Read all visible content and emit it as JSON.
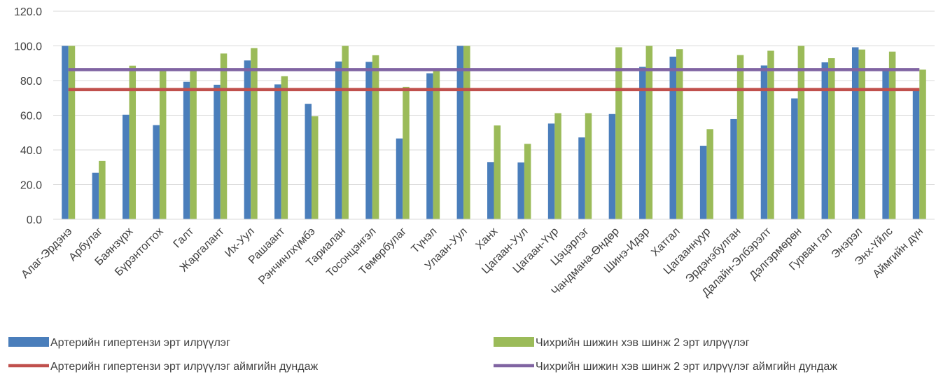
{
  "chart_data": {
    "type": "bar",
    "title": "",
    "xlabel": "",
    "ylabel": "",
    "ylim": [
      0,
      120
    ],
    "yticks": [
      "0.0",
      "20.0",
      "40.0",
      "60.0",
      "80.0",
      "100.0",
      "120.0"
    ],
    "grid": true,
    "legend_position": "bottom",
    "categories": [
      "Алаг-Эрдэнэ",
      "Арбулаг",
      "Баянзүрх",
      "Бүрэнтогтох",
      "Галт",
      "Жаргалант",
      "Их-Уул",
      "Рашаант",
      "Рэнчинлхүмбэ",
      "Тариалан",
      "Тосонцэнгэл",
      "Төмөрбулаг",
      "Түнэл",
      "Улаан-Уул",
      "Ханх",
      "Цагаан-Уул",
      "Цагаан-Үүр",
      "Цэцэрлэг",
      "Чандмана-Өндөр",
      "Шинэ-Идэр",
      "Хатгал",
      "Цагааннуур",
      "Эрдэнэбулган",
      "Далайн-Элбэрэлт",
      "Дэлгэрмөрөн",
      "Гурван гал",
      "Энэрэл",
      "Энх-Үйлс",
      "Аймгийн дүн"
    ],
    "series": [
      {
        "name": "Артерийн гипертензи эрт илрүүлэг",
        "color": "#4a7ebb",
        "values": [
          100.0,
          26.8,
          60.3,
          54.3,
          79.3,
          77.6,
          91.6,
          77.8,
          66.6,
          91.0,
          90.8,
          46.6,
          84.2,
          100.0,
          33.0,
          32.8,
          55.2,
          47.2,
          60.7,
          87.9,
          93.8,
          42.4,
          57.8,
          88.7,
          69.7,
          90.5,
          99.2,
          86.5,
          74.8
        ]
      },
      {
        "name": "Чихрийн шижин хэв шинж 2 эрт илрүүлэг",
        "color": "#9bbb59",
        "values": [
          100.0,
          33.6,
          88.6,
          85.8,
          86.0,
          95.6,
          98.7,
          82.5,
          59.4,
          100.0,
          94.6,
          76.4,
          85.5,
          100.0,
          54.1,
          43.5,
          61.2,
          61.2,
          99.2,
          100.0,
          98.1,
          52.0,
          94.7,
          97.2,
          100.0,
          92.9,
          97.9,
          96.7,
          86.3
        ]
      }
    ],
    "reference_lines": [
      {
        "name": "Артерийн гипертензи эрт илрүүлэг аймгийн дундаж",
        "value": 74.8,
        "color": "#c0504d"
      },
      {
        "name": "Чихрийн шижин хэв шинж 2 эрт илрүүлэг  аймгийн дундаж",
        "value": 86.3,
        "color": "#8064a2"
      }
    ]
  },
  "legend": [
    {
      "label": "Артерийн гипертензи эрт илрүүлэг",
      "kind": "bar",
      "color": "#4a7ebb"
    },
    {
      "label": "Чихрийн шижин хэв шинж 2 эрт илрүүлэг",
      "kind": "bar",
      "color": "#9bbb59"
    },
    {
      "label": "Артерийн гипертензи эрт илрүүлэг аймгийн дундаж",
      "kind": "line",
      "color": "#c0504d"
    },
    {
      "label": "Чихрийн шижин хэв шинж 2 эрт илрүүлэг  аймгийн дундаж",
      "kind": "line",
      "color": "#8064a2"
    }
  ]
}
